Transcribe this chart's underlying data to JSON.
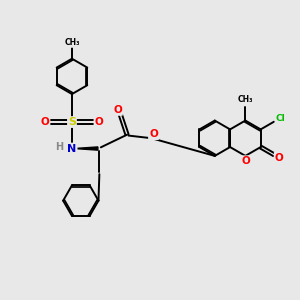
{
  "background_color": "#e8e8e8",
  "bond_color": "#000000",
  "atom_colors": {
    "O": "#ff0000",
    "N": "#0000cd",
    "S": "#cccc00",
    "Cl": "#00bb00",
    "H": "#888888",
    "C": "#000000"
  },
  "figsize": [
    3.0,
    3.0
  ],
  "dpi": 100,
  "lw": 1.4,
  "ring_r": 0.6
}
